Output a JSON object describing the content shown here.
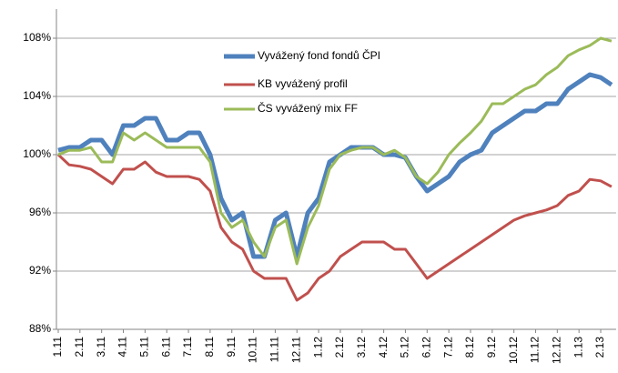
{
  "chart_data": {
    "type": "line",
    "categories": [
      "1.11",
      null,
      "2.11",
      null,
      "3.11",
      null,
      "4.11",
      null,
      "5.11",
      null,
      "6.11",
      null,
      "7.11",
      null,
      "8.11",
      null,
      "9.11",
      null,
      "10.11",
      null,
      "11.11",
      null,
      "12.11",
      null,
      "1.12",
      null,
      "2.12",
      null,
      "3.12",
      null,
      "4.12",
      null,
      "5.12",
      null,
      "6.12",
      null,
      "7.12",
      null,
      "8.12",
      null,
      "9.12",
      null,
      "10.12",
      null,
      "11.12",
      null,
      "12.12",
      null,
      "1.13",
      null,
      "2.13",
      null
    ],
    "series": [
      {
        "name": "Vyvážený fond fondů ČPI",
        "color": "#4f81bd",
        "values": [
          100.3,
          100.5,
          100.5,
          101,
          101,
          100,
          102,
          102,
          102.5,
          102.5,
          101,
          101,
          101.5,
          101.5,
          100,
          97,
          95.5,
          96,
          93,
          93,
          95.5,
          96,
          93,
          96,
          97,
          99.5,
          100,
          100.5,
          100.5,
          100.5,
          100,
          100,
          99.8,
          98.5,
          97.5,
          98,
          98.5,
          99.5,
          100,
          100.3,
          101.5,
          102,
          102.5,
          103,
          103,
          103.5,
          103.5,
          104.5,
          105,
          105.5,
          105.3,
          104.8
        ]
      },
      {
        "name": "KB vyvážený profil",
        "color": "#c0504d",
        "values": [
          100,
          99.3,
          99.2,
          99,
          98.5,
          98,
          99,
          99,
          99.5,
          98.8,
          98.5,
          98.5,
          98.5,
          98.3,
          97.5,
          95,
          94,
          93.5,
          92,
          91.5,
          91.5,
          91.5,
          90,
          90.5,
          91.5,
          92,
          93,
          93.5,
          94,
          94,
          94,
          93.5,
          93.5,
          92.5,
          91.5,
          92,
          92.5,
          93,
          93.5,
          94,
          94.5,
          95,
          95.5,
          95.8,
          96,
          96.2,
          96.5,
          97.2,
          97.5,
          98.3,
          98.2,
          97.8
        ]
      },
      {
        "name": "ČS vyvážený mix FF",
        "color": "#9bbb59",
        "values": [
          100,
          100.3,
          100.3,
          100.5,
          99.5,
          99.5,
          101.5,
          101,
          101.5,
          101,
          100.5,
          100.5,
          100.5,
          100.5,
          99.5,
          96,
          95,
          95.5,
          94,
          93,
          95,
          95.5,
          92.5,
          95,
          96.5,
          99,
          100,
          100.3,
          100.5,
          100.5,
          100,
          100.3,
          99.8,
          98.5,
          98,
          98.8,
          100,
          100.8,
          101.5,
          102.3,
          103.5,
          103.5,
          104,
          104.5,
          104.8,
          105.5,
          106,
          106.8,
          107.2,
          107.5,
          108,
          107.8
        ]
      }
    ],
    "ylim": [
      88,
      110
    ],
    "yticks": [
      {
        "value": 88,
        "label": "88%"
      },
      {
        "value": 92,
        "label": "92%"
      },
      {
        "value": 96,
        "label": "96%"
      },
      {
        "value": 100,
        "label": "100%"
      },
      {
        "value": 104,
        "label": "104%"
      },
      {
        "value": 108,
        "label": "108%"
      }
    ],
    "grid": true
  }
}
